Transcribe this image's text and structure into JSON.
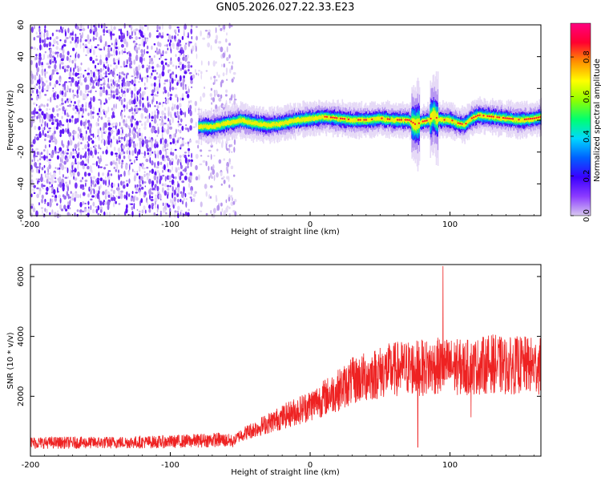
{
  "chart_data": [
    {
      "type": "heatmap",
      "title": "GN05.2026.027.22.33.E23",
      "xlabel": "Height of straight line (km)",
      "ylabel": "Frequency (Hz)",
      "xlim": [
        -200,
        165
      ],
      "ylim": [
        -60,
        60
      ],
      "xticks": [
        "-200",
        "-100",
        "0",
        "100"
      ],
      "xtick_values": [
        -200,
        -100,
        0,
        100
      ],
      "yticks": [
        "60",
        "40",
        "20",
        "0",
        "-20",
        "-40",
        "-60"
      ],
      "ytick_values": [
        60,
        40,
        20,
        0,
        -20,
        -40,
        -60
      ],
      "colorbar": {
        "label": "Normalized spectral amplitude",
        "range": [
          0,
          0.97
        ],
        "ticks": [
          "0.0",
          "0.2",
          "0.4",
          "0.6",
          "0.8"
        ],
        "tick_values": [
          0,
          0.2,
          0.4,
          0.6,
          0.8
        ],
        "colormap": [
          "#d8c8f0",
          "#8c3cff",
          "#3a00ff",
          "#0060ff",
          "#00d8ff",
          "#00ff70",
          "#90ff00",
          "#ffff00",
          "#ff9000",
          "#ff0030",
          "#ff0080"
        ]
      },
      "noise_region_x": [
        -200,
        -53
      ],
      "ridge_x": [
        -80,
        -70,
        -60,
        -50,
        -40,
        -30,
        -20,
        -10,
        0,
        10,
        20,
        30,
        40,
        50,
        60,
        70,
        75,
        80,
        85,
        88,
        90,
        95,
        100,
        105,
        110,
        115,
        120,
        130,
        140,
        150,
        160,
        165
      ],
      "ridge_y": [
        -4,
        -4,
        -2,
        0,
        -2,
        -3,
        -2,
        0,
        1,
        2,
        1,
        0,
        0,
        1,
        0,
        0,
        -3,
        -1,
        0,
        4,
        1,
        0,
        0,
        -2,
        -3,
        1,
        3,
        2,
        1,
        0,
        1,
        2
      ]
    },
    {
      "type": "line",
      "title": "",
      "xlabel": "Height of straight line (km)",
      "ylabel": "SNR (10 * v/v)",
      "xlim": [
        -200,
        165
      ],
      "ylim": [
        0,
        6400
      ],
      "xticks": [
        "-200",
        "-100",
        "0",
        "100"
      ],
      "xtick_values": [
        -200,
        -100,
        0,
        100
      ],
      "yticks": [
        "6000",
        "4000",
        "2000"
      ],
      "ytick_values": [
        6000,
        4000,
        2000
      ],
      "series_color": "#ee2222",
      "trend_x": [
        -200,
        -150,
        -100,
        -80,
        -65,
        -55,
        -50,
        -40,
        -30,
        -20,
        -10,
        0,
        10,
        20,
        30,
        40,
        50,
        60,
        70,
        80,
        90,
        100,
        110,
        120,
        130,
        140,
        150,
        165
      ],
      "trend_y": [
        450,
        450,
        480,
        520,
        550,
        500,
        700,
        900,
        1100,
        1300,
        1500,
        1700,
        1950,
        2200,
        2500,
        2650,
        2800,
        2900,
        2950,
        2950,
        3000,
        3000,
        2950,
        3000,
        3100,
        3000,
        3050,
        3000
      ],
      "spikes": [
        {
          "x": 95,
          "y": 6350
        },
        {
          "x": 77,
          "y": 300
        },
        {
          "x": 115,
          "y": 1300
        }
      ]
    }
  ]
}
